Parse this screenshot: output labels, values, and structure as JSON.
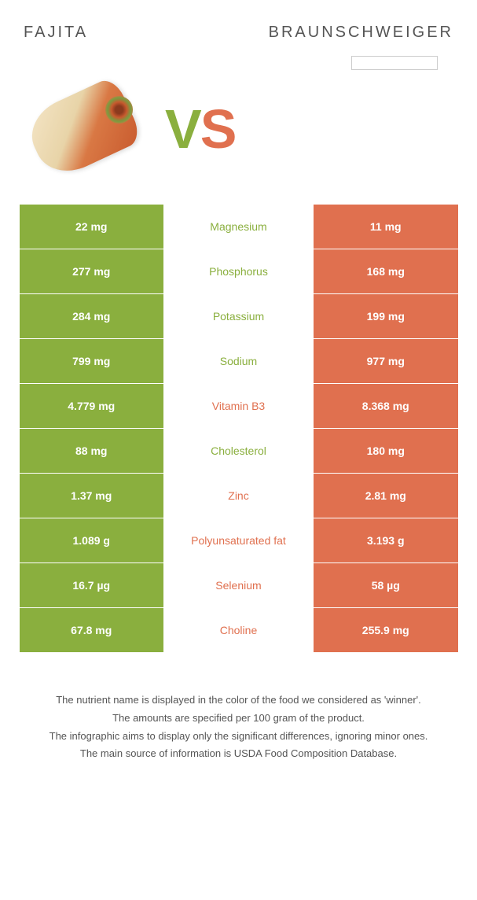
{
  "header": {
    "left_title": "Fajita",
    "right_title": "Braunschweiger"
  },
  "vs": {
    "v": "V",
    "s": "S"
  },
  "colors": {
    "left": "#8aaf3e",
    "right": "#e0704f"
  },
  "rows": [
    {
      "left": "22 mg",
      "name": "Magnesium",
      "right": "11 mg",
      "winner": "left"
    },
    {
      "left": "277 mg",
      "name": "Phosphorus",
      "right": "168 mg",
      "winner": "left"
    },
    {
      "left": "284 mg",
      "name": "Potassium",
      "right": "199 mg",
      "winner": "left"
    },
    {
      "left": "799 mg",
      "name": "Sodium",
      "right": "977 mg",
      "winner": "left"
    },
    {
      "left": "4.779 mg",
      "name": "Vitamin B3",
      "right": "8.368 mg",
      "winner": "right"
    },
    {
      "left": "88 mg",
      "name": "Cholesterol",
      "right": "180 mg",
      "winner": "left"
    },
    {
      "left": "1.37 mg",
      "name": "Zinc",
      "right": "2.81 mg",
      "winner": "right"
    },
    {
      "left": "1.089 g",
      "name": "Polyunsaturated fat",
      "right": "3.193 g",
      "winner": "right"
    },
    {
      "left": "16.7 µg",
      "name": "Selenium",
      "right": "58 µg",
      "winner": "right"
    },
    {
      "left": "67.8 mg",
      "name": "Choline",
      "right": "255.9 mg",
      "winner": "right"
    }
  ],
  "footer": {
    "line1": "The nutrient name is displayed in the color of the food we considered as 'winner'.",
    "line2": "The amounts are specified per 100 gram of the product.",
    "line3": "The infographic aims to display only the significant differences, ignoring minor ones.",
    "line4": "The main source of information is USDA Food Composition Database."
  }
}
